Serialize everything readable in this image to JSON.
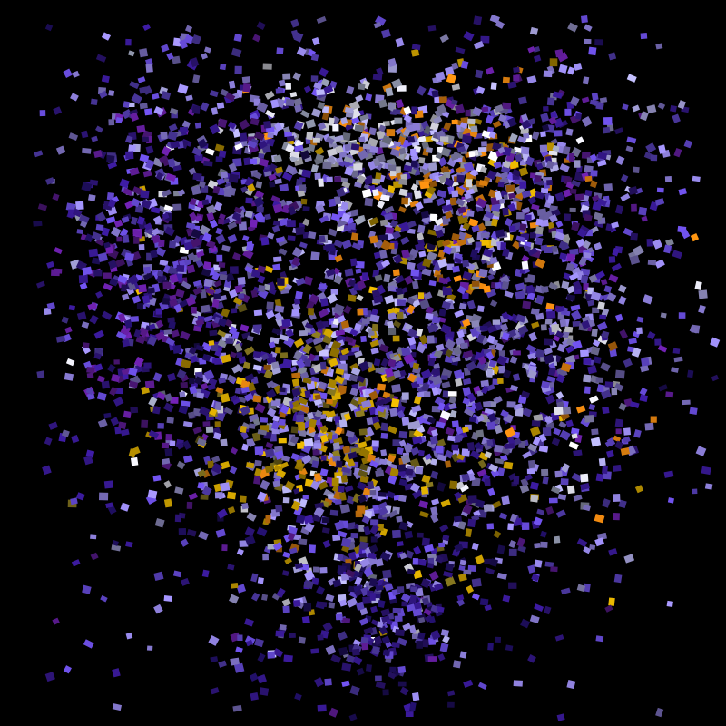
{
  "scene": {
    "background_color": "#000000",
    "subject": "scattered-particle-cloud",
    "palette": {
      "violet": "#6a4ee0",
      "lavender": "#9b8cf0",
      "pale_blue": "#b9b5f5",
      "deep_purple": "#3a1a9a",
      "dark_indigo": "#22106a",
      "magenta_purple": "#6a1fa8",
      "white": "#f4f4ff",
      "gold": "#e0b000",
      "orange": "#f08a10",
      "olive": "#8a7a20",
      "gray_blue": "#9aa0b8"
    }
  }
}
